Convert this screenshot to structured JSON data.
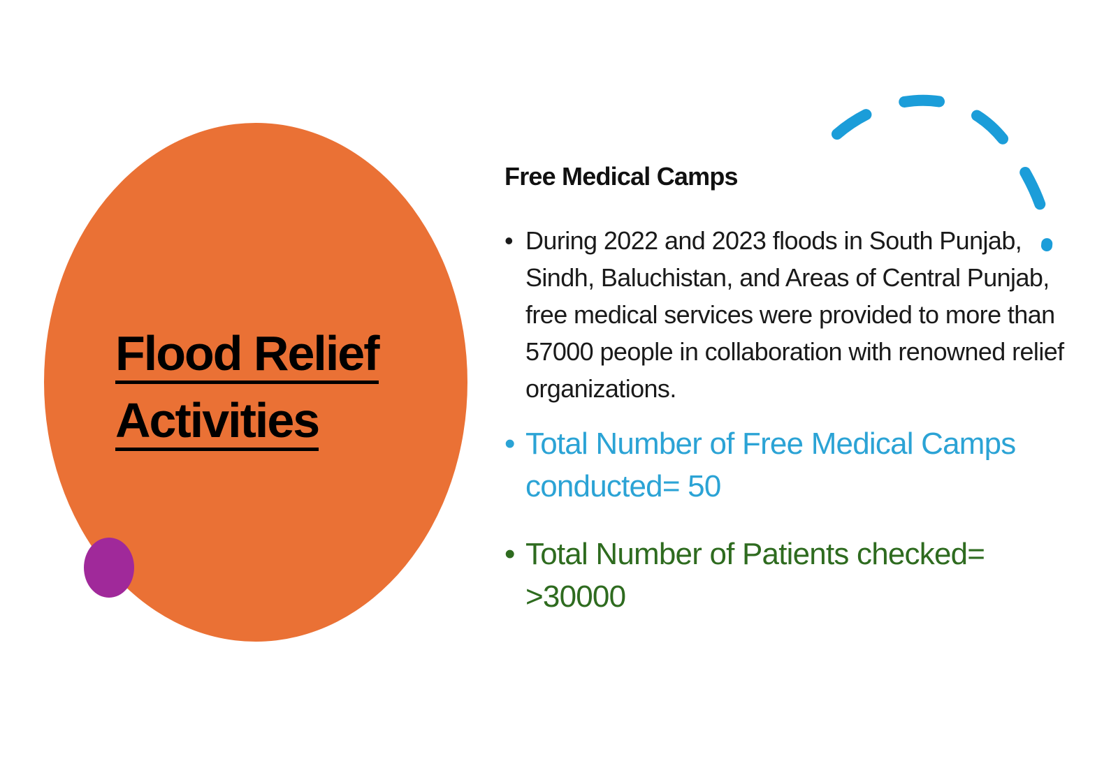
{
  "colors": {
    "big_circle": "#EA7135",
    "small_circle": "#A0299A",
    "dash_arc": "#1B9DD9",
    "body_text": "#1A1A1A",
    "highlight_blue": "#2BA3D5",
    "highlight_green": "#2E6B1F"
  },
  "title": {
    "line1": "Flood Relief",
    "line2": "Activities"
  },
  "section": {
    "heading": "Free Medical Camps",
    "bullet_symbol": "•",
    "bullets": [
      {
        "text": "During 2022 and 2023 floods in South Punjab, Sindh, Baluchistan, and Areas of Central Punjab, free medical services were provided to more than 57000 people in collaboration with renowned relief organizations."
      },
      {
        "text": "Total Number of Free Medical Camps conducted= 50"
      },
      {
        "text": "Total Number of Patients checked= >30000"
      }
    ]
  }
}
